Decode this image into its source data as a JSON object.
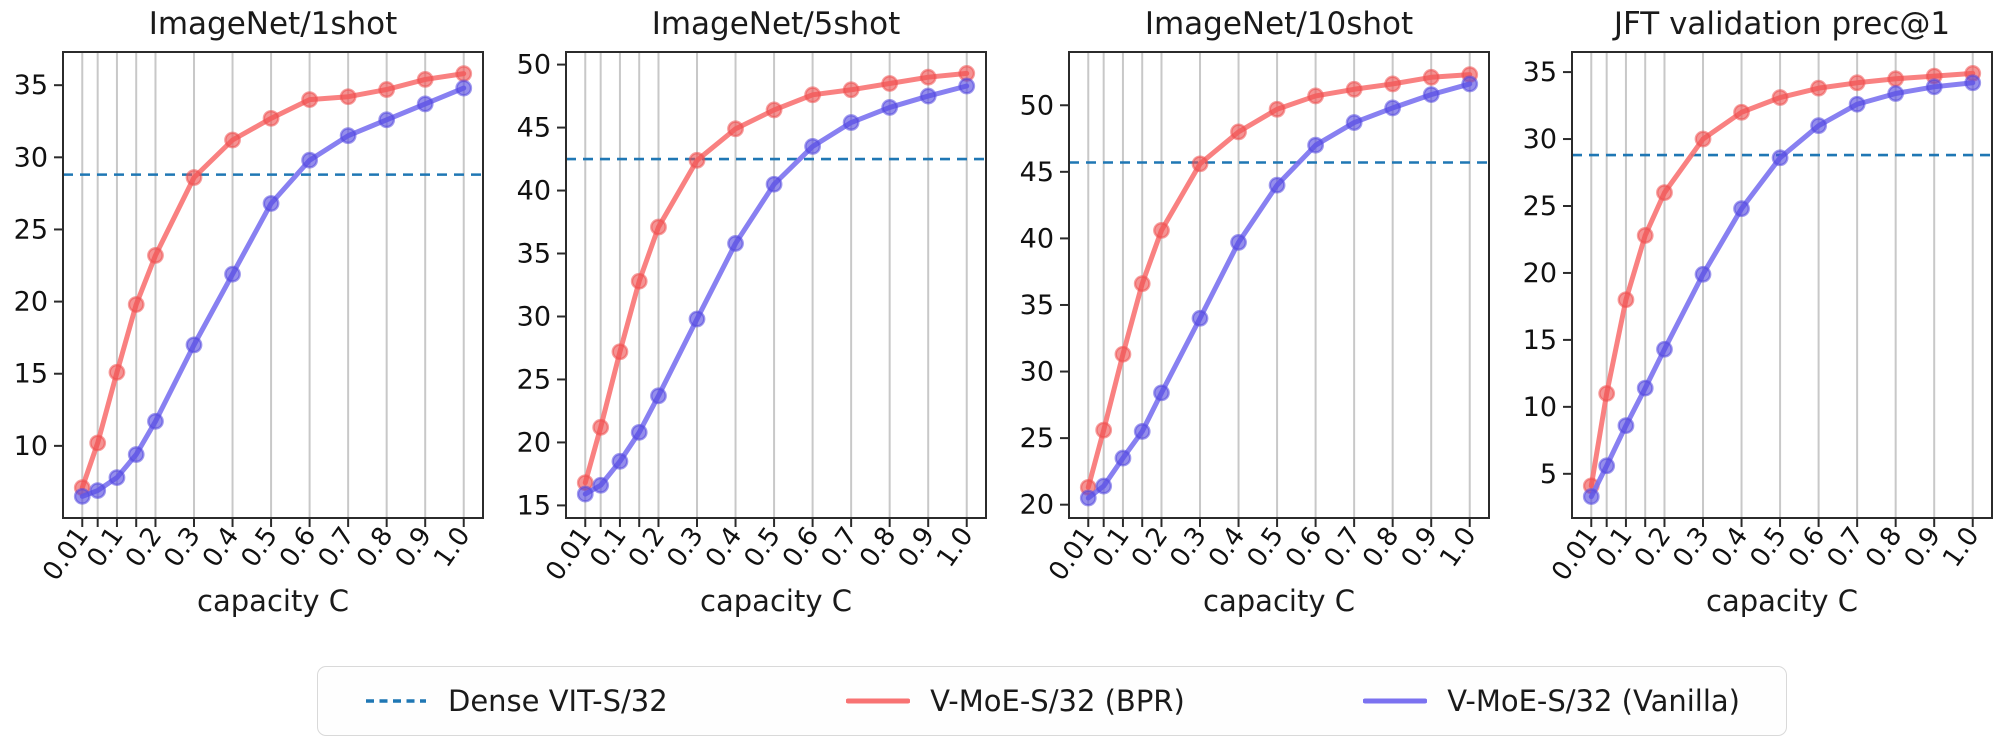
{
  "figure": {
    "xlabel": "capacity C",
    "x_values": [
      0.01,
      0.05,
      0.1,
      0.15,
      0.2,
      0.3,
      0.4,
      0.5,
      0.6,
      0.7,
      0.8,
      0.9,
      1.0
    ],
    "x_tick_values": [
      0.01,
      0.1,
      0.2,
      0.3,
      0.4,
      0.5,
      0.6,
      0.7,
      0.8,
      0.9,
      1.0
    ],
    "x_tick_labels": [
      "0.01",
      "0.1",
      "0.2",
      "0.3",
      "0.4",
      "0.5",
      "0.6",
      "0.7",
      "0.8",
      "0.9",
      "1.0"
    ],
    "xlim": [
      -0.04,
      1.05
    ],
    "colors": {
      "bpr_line": "#f87373",
      "bpr_marker": "#ef5150",
      "vanilla_line": "#7b72f0",
      "vanilla_marker": "#5448e0",
      "dense_line": "#1f77b4",
      "grid": "#c8c8c8",
      "spine": "#2b2b2b"
    }
  },
  "legend": {
    "entries": [
      {
        "label": "Dense VIT-S/32",
        "style": "dashed",
        "color": "#1f77b4"
      },
      {
        "label": "V-MoE-S/32 (BPR)",
        "style": "solid",
        "color": "#f87373"
      },
      {
        "label": "V-MoE-S/32 (Vanilla)",
        "style": "solid",
        "color": "#7b72f0"
      }
    ]
  },
  "chart_data": [
    {
      "type": "line",
      "title": "ImageNet/1shot",
      "xlabel": "capacity C",
      "x": [
        0.01,
        0.05,
        0.1,
        0.15,
        0.2,
        0.3,
        0.4,
        0.5,
        0.6,
        0.7,
        0.8,
        0.9,
        1.0
      ],
      "series": [
        {
          "name": "V-MoE-S/32 (BPR)",
          "values": [
            7.1,
            10.2,
            15.1,
            19.8,
            23.2,
            28.6,
            31.2,
            32.7,
            34.0,
            34.2,
            34.7,
            35.4,
            35.8
          ]
        },
        {
          "name": "V-MoE-S/32 (Vanilla)",
          "values": [
            6.5,
            6.9,
            7.8,
            9.4,
            11.7,
            17.0,
            21.9,
            26.8,
            29.8,
            31.5,
            32.6,
            33.7,
            34.8
          ]
        }
      ],
      "baseline": {
        "name": "Dense VIT-S/32",
        "value": 28.8
      },
      "y_ticks": [
        10,
        15,
        20,
        25,
        30,
        35
      ],
      "ylim": [
        5.0,
        37.3
      ],
      "grid": "vertical-only",
      "legend_position": "bottom-figure"
    },
    {
      "type": "line",
      "title": "ImageNet/5shot",
      "xlabel": "capacity C",
      "x": [
        0.01,
        0.05,
        0.1,
        0.15,
        0.2,
        0.3,
        0.4,
        0.5,
        0.6,
        0.7,
        0.8,
        0.9,
        1.0
      ],
      "series": [
        {
          "name": "V-MoE-S/32 (BPR)",
          "values": [
            16.8,
            21.2,
            27.2,
            32.8,
            37.1,
            42.4,
            44.9,
            46.4,
            47.6,
            48.0,
            48.5,
            49.0,
            49.3
          ]
        },
        {
          "name": "V-MoE-S/32 (Vanilla)",
          "values": [
            15.9,
            16.6,
            18.5,
            20.8,
            23.7,
            29.8,
            35.8,
            40.5,
            43.5,
            45.4,
            46.6,
            47.5,
            48.3
          ]
        }
      ],
      "baseline": {
        "name": "Dense VIT-S/32",
        "value": 42.5
      },
      "y_ticks": [
        15,
        20,
        25,
        30,
        35,
        40,
        45,
        50
      ],
      "ylim": [
        14.0,
        51.0
      ],
      "grid": "vertical-only",
      "legend_position": "bottom-figure"
    },
    {
      "type": "line",
      "title": "ImageNet/10shot",
      "xlabel": "capacity C",
      "x": [
        0.01,
        0.05,
        0.1,
        0.15,
        0.2,
        0.3,
        0.4,
        0.5,
        0.6,
        0.7,
        0.8,
        0.9,
        1.0
      ],
      "series": [
        {
          "name": "V-MoE-S/32 (BPR)",
          "values": [
            21.3,
            25.6,
            31.3,
            36.6,
            40.6,
            45.6,
            48.0,
            49.7,
            50.7,
            51.2,
            51.6,
            52.1,
            52.3
          ]
        },
        {
          "name": "V-MoE-S/32 (Vanilla)",
          "values": [
            20.5,
            21.4,
            23.5,
            25.5,
            28.4,
            34.0,
            39.7,
            44.0,
            47.0,
            48.7,
            49.8,
            50.8,
            51.6
          ]
        }
      ],
      "baseline": {
        "name": "Dense VIT-S/32",
        "value": 45.7
      },
      "y_ticks": [
        20,
        25,
        30,
        35,
        40,
        45,
        50
      ],
      "ylim": [
        19.0,
        54.0
      ],
      "grid": "vertical-only",
      "legend_position": "bottom-figure"
    },
    {
      "type": "line",
      "title": "JFT validation prec@1",
      "xlabel": "capacity C",
      "x": [
        0.01,
        0.05,
        0.1,
        0.15,
        0.2,
        0.3,
        0.4,
        0.5,
        0.6,
        0.7,
        0.8,
        0.9,
        1.0
      ],
      "series": [
        {
          "name": "V-MoE-S/32 (BPR)",
          "values": [
            4.1,
            11.0,
            18.0,
            22.8,
            26.0,
            30.0,
            32.0,
            33.1,
            33.8,
            34.2,
            34.5,
            34.7,
            34.9
          ]
        },
        {
          "name": "V-MoE-S/32 (Vanilla)",
          "values": [
            3.3,
            5.6,
            8.6,
            11.4,
            14.3,
            19.9,
            24.8,
            28.6,
            31.0,
            32.6,
            33.4,
            33.9,
            34.2
          ]
        }
      ],
      "baseline": {
        "name": "Dense VIT-S/32",
        "value": 28.8
      },
      "y_ticks": [
        5,
        10,
        15,
        20,
        25,
        30,
        35
      ],
      "ylim": [
        1.7,
        36.5
      ],
      "grid": "vertical-only",
      "legend_position": "bottom-figure"
    }
  ]
}
